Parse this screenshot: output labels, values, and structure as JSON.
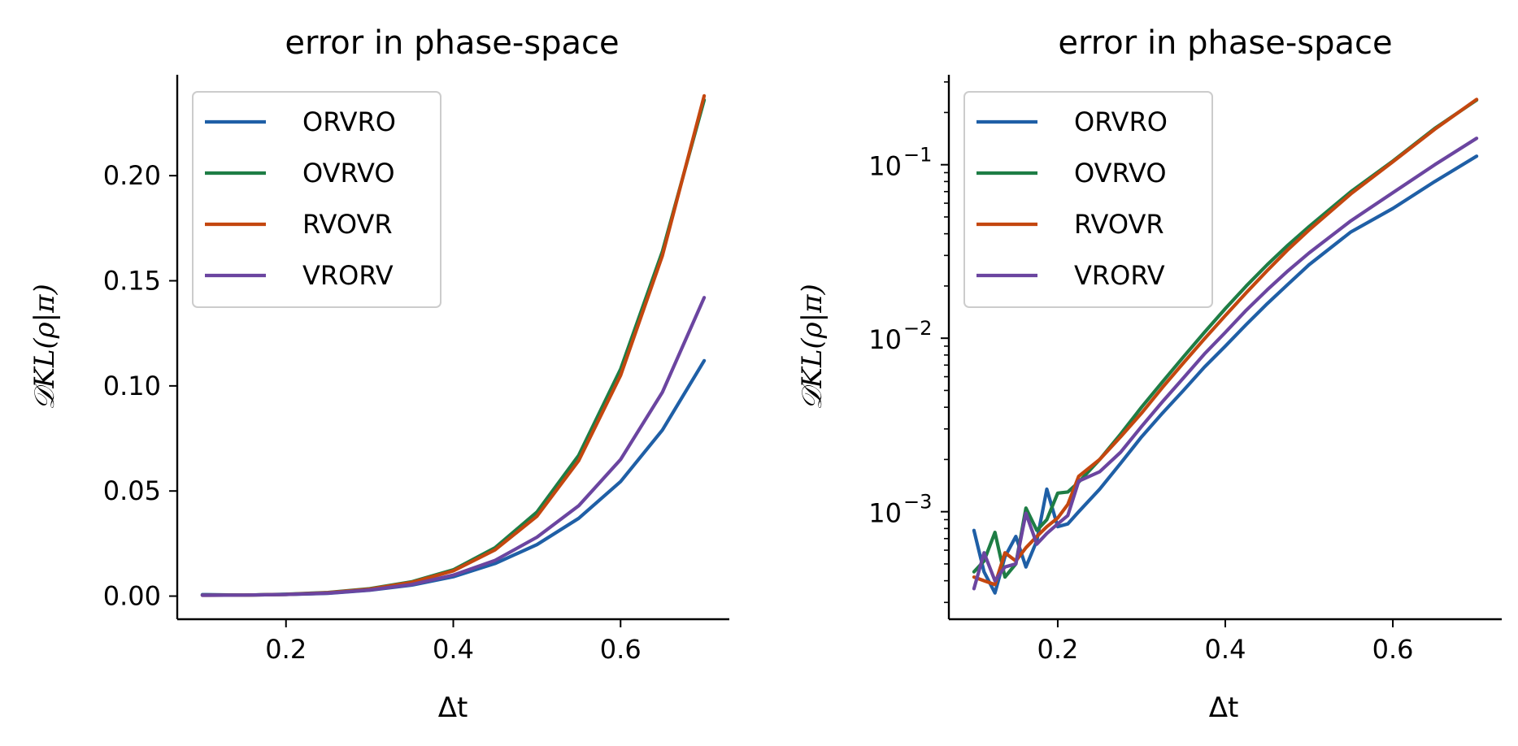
{
  "chart_data": [
    {
      "type": "line",
      "title": "error in phase-space",
      "xlabel": "Δt",
      "ylabel": "𝒟KL(ρ|π)",
      "yscale": "linear",
      "xlim": [
        0.07,
        0.73
      ],
      "ylim": [
        -0.011,
        0.248
      ],
      "xticks": [
        0.2,
        0.4,
        0.6
      ],
      "xtick_labels": [
        "0.2",
        "0.4",
        "0.6"
      ],
      "yticks": [
        0.0,
        0.05,
        0.1,
        0.15,
        0.2
      ],
      "ytick_labels": [
        "0.00",
        "0.05",
        "0.10",
        "0.15",
        "0.20"
      ],
      "legend_position": "top-left",
      "grid": false,
      "x": [
        0.1,
        0.15,
        0.2,
        0.25,
        0.3,
        0.35,
        0.4,
        0.45,
        0.5,
        0.55,
        0.6,
        0.65,
        0.7
      ],
      "series": [
        {
          "name": "ORVRO",
          "color": "#1f5fa6",
          "values": [
            0.0007,
            0.0005,
            0.0008,
            0.0013,
            0.0028,
            0.0052,
            0.0092,
            0.0155,
            0.0245,
            0.037,
            0.0545,
            0.079,
            0.112
          ]
        },
        {
          "name": "OVRVO",
          "color": "#1e7d45",
          "values": [
            0.0005,
            0.0005,
            0.0009,
            0.0017,
            0.0035,
            0.0068,
            0.0125,
            0.023,
            0.04,
            0.067,
            0.108,
            0.164,
            0.236
          ]
        },
        {
          "name": "RVOVR",
          "color": "#c4470f",
          "values": [
            0.0004,
            0.0005,
            0.0008,
            0.0016,
            0.0033,
            0.0065,
            0.012,
            0.022,
            0.038,
            0.0645,
            0.105,
            0.162,
            0.238
          ]
        },
        {
          "name": "VRORV",
          "color": "#6b45a0",
          "values": [
            0.0004,
            0.0005,
            0.0008,
            0.0014,
            0.0029,
            0.0055,
            0.01,
            0.017,
            0.028,
            0.043,
            0.065,
            0.097,
            0.142
          ]
        }
      ]
    },
    {
      "type": "line",
      "title": "error in phase-space",
      "xlabel": "Δt",
      "ylabel": "𝒟KL(ρ|π)",
      "yscale": "log",
      "xlim": [
        0.07,
        0.73
      ],
      "ylim": [
        0.00024,
        0.33
      ],
      "xticks": [
        0.2,
        0.4,
        0.6
      ],
      "xtick_labels": [
        "0.2",
        "0.4",
        "0.6"
      ],
      "yticks": [
        0.001,
        0.01,
        0.1
      ],
      "ytick_labels": [
        {
          "base": "10",
          "exp": "−3"
        },
        {
          "base": "10",
          "exp": "−2"
        },
        {
          "base": "10",
          "exp": "−1"
        }
      ],
      "legend_position": "top-left",
      "grid": false,
      "x": [
        0.1,
        0.112,
        0.125,
        0.137,
        0.15,
        0.162,
        0.175,
        0.187,
        0.2,
        0.212,
        0.225,
        0.25,
        0.275,
        0.3,
        0.325,
        0.35,
        0.375,
        0.4,
        0.425,
        0.45,
        0.475,
        0.5,
        0.55,
        0.6,
        0.65,
        0.7
      ],
      "series": [
        {
          "name": "ORVRO",
          "color": "#1f5fa6",
          "values": [
            0.00078,
            0.00045,
            0.00034,
            0.00055,
            0.00072,
            0.00048,
            0.00068,
            0.00135,
            0.00082,
            0.00085,
            0.001,
            0.00135,
            0.0019,
            0.0027,
            0.0037,
            0.005,
            0.0068,
            0.009,
            0.012,
            0.0158,
            0.0205,
            0.0265,
            0.041,
            0.056,
            0.08,
            0.112
          ]
        },
        {
          "name": "OVRVO",
          "color": "#1e7d45",
          "values": [
            0.00045,
            0.00052,
            0.00076,
            0.00042,
            0.0005,
            0.00105,
            0.00078,
            0.0009,
            0.00128,
            0.0013,
            0.00148,
            0.002,
            0.0028,
            0.004,
            0.0056,
            0.0078,
            0.0108,
            0.0148,
            0.02,
            0.0265,
            0.0345,
            0.044,
            0.07,
            0.105,
            0.162,
            0.236
          ]
        },
        {
          "name": "RVOVR",
          "color": "#c4470f",
          "values": [
            0.00042,
            0.0004,
            0.00038,
            0.00058,
            0.00052,
            0.00062,
            0.00072,
            0.00082,
            0.00092,
            0.0011,
            0.0016,
            0.002,
            0.0027,
            0.0037,
            0.0052,
            0.0072,
            0.0099,
            0.0135,
            0.0183,
            0.0245,
            0.0325,
            0.042,
            0.068,
            0.104,
            0.16,
            0.238
          ]
        },
        {
          "name": "VRORV",
          "color": "#6b45a0",
          "values": [
            0.00036,
            0.00058,
            0.0004,
            0.00048,
            0.0005,
            0.00098,
            0.00065,
            0.00075,
            0.00085,
            0.00095,
            0.0015,
            0.0017,
            0.0022,
            0.0031,
            0.0043,
            0.0059,
            0.0081,
            0.0108,
            0.0145,
            0.019,
            0.0245,
            0.031,
            0.0475,
            0.069,
            0.1,
            0.142
          ]
        }
      ]
    }
  ]
}
